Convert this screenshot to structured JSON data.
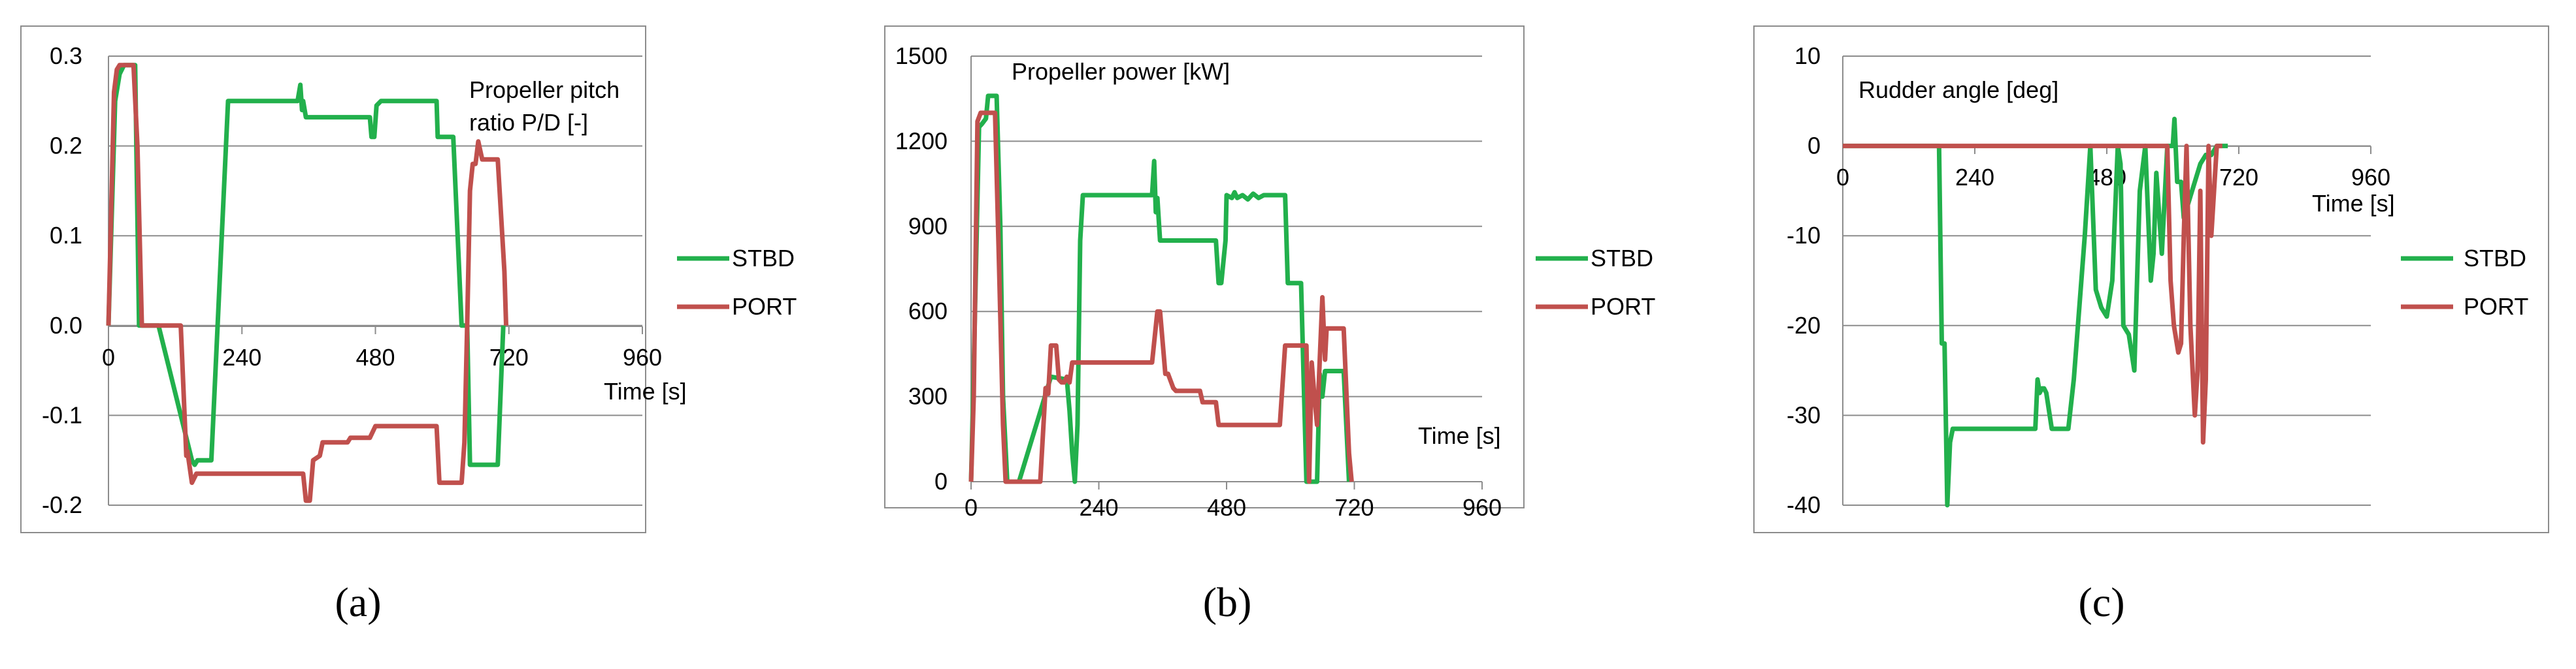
{
  "chart_data": [
    {
      "type": "line",
      "panel_label": "(a)",
      "title": "Propeller pitch ratio P/D [-]",
      "title_lines": [
        "Propeller pitch",
        "ratio P/D [-]"
      ],
      "xlabel": "Time [s]",
      "ylabel": "",
      "xlim": [
        0,
        960
      ],
      "ylim": [
        -0.2,
        0.3
      ],
      "xticks": [
        0,
        240,
        480,
        720,
        960
      ],
      "xtick_labels": [
        "0",
        "240",
        "480",
        "720",
        "960"
      ],
      "yticks": [
        0.3,
        0.2,
        0.1,
        0.0,
        -0.1,
        -0.2
      ],
      "ytick_labels": [
        "0.3",
        "0.2",
        "0.1",
        "0.0",
        "-0.1",
        "-0.2"
      ],
      "grid": "horizontal",
      "legend_position": "right",
      "series": [
        {
          "name": "STBD",
          "color": "#22b04c",
          "x": [
            0,
            12,
            20,
            28,
            30,
            48,
            55,
            90,
            150,
            155,
            160,
            185,
            215,
            218,
            340,
            345,
            348,
            350,
            355,
            360,
            470,
            473,
            478,
            482,
            490,
            590,
            592,
            620,
            635,
            645,
            650,
            700,
            710
          ],
          "y": [
            0.0,
            0.25,
            0.28,
            0.29,
            0.29,
            0.29,
            0.0,
            0.0,
            -0.15,
            -0.155,
            -0.15,
            -0.15,
            0.25,
            0.25,
            0.25,
            0.268,
            0.24,
            0.25,
            0.232,
            0.232,
            0.232,
            0.21,
            0.21,
            0.245,
            0.25,
            0.25,
            0.21,
            0.21,
            0.0,
            0.0,
            -0.155,
            -0.155,
            0.0
          ]
        },
        {
          "name": "PORT",
          "color": "#c0504d",
          "x": [
            0,
            10,
            15,
            20,
            45,
            52,
            60,
            90,
            130,
            140,
            142,
            150,
            158,
            162,
            320,
            350,
            355,
            362,
            368,
            380,
            385,
            430,
            435,
            470,
            480,
            590,
            595,
            635,
            640,
            645,
            650,
            655,
            660,
            665,
            672,
            700,
            712,
            715
          ],
          "y": [
            0.0,
            0.26,
            0.285,
            0.29,
            0.29,
            0.2,
            0.0,
            0.0,
            0.0,
            -0.145,
            -0.14,
            -0.175,
            -0.165,
            -0.165,
            -0.165,
            -0.165,
            -0.195,
            -0.195,
            -0.15,
            -0.145,
            -0.13,
            -0.13,
            -0.125,
            -0.125,
            -0.112,
            -0.112,
            -0.175,
            -0.175,
            -0.13,
            0.0,
            0.15,
            0.18,
            0.18,
            0.205,
            0.185,
            0.185,
            0.06,
            0.0
          ]
        }
      ]
    },
    {
      "type": "line",
      "panel_label": "(b)",
      "title": "Propeller power [kW]",
      "title_lines": [
        "Propeller power [kW]"
      ],
      "xlabel": "Time [s]",
      "ylabel": "",
      "xlim": [
        0,
        960
      ],
      "ylim": [
        0,
        1500
      ],
      "xticks": [
        0,
        240,
        480,
        720,
        960
      ],
      "xtick_labels": [
        "0",
        "240",
        "480",
        "720",
        "960"
      ],
      "yticks": [
        1500,
        1200,
        900,
        600,
        300,
        0
      ],
      "ytick_labels": [
        "1500",
        "1200",
        "900",
        "600",
        "300",
        "0"
      ],
      "grid": "horizontal",
      "legend_position": "right",
      "series": [
        {
          "name": "STBD",
          "color": "#22b04c",
          "x": [
            0,
            5,
            15,
            20,
            28,
            32,
            48,
            55,
            60,
            68,
            90,
            150,
            180,
            185,
            190,
            195,
            200,
            205,
            210,
            215,
            340,
            344,
            347,
            350,
            355,
            460,
            465,
            470,
            478,
            480,
            490,
            495,
            500,
            510,
            520,
            530,
            540,
            550,
            590,
            595,
            620,
            630,
            640,
            650,
            655,
            660,
            665,
            700,
            710
          ],
          "y": [
            0,
            400,
            1250,
            1260,
            1280,
            1360,
            1360,
            900,
            300,
            0,
            0,
            370,
            360,
            250,
            100,
            0,
            200,
            850,
            1010,
            1010,
            1010,
            1130,
            950,
            1000,
            850,
            850,
            700,
            700,
            850,
            1010,
            1000,
            1020,
            1000,
            1010,
            995,
            1015,
            1000,
            1010,
            1010,
            700,
            700,
            0,
            0,
            0,
            380,
            300,
            390,
            390,
            0
          ]
        },
        {
          "name": "PORT",
          "color": "#c0504d",
          "x": [
            0,
            5,
            12,
            18,
            45,
            52,
            60,
            65,
            130,
            140,
            145,
            150,
            155,
            160,
            165,
            170,
            175,
            180,
            185,
            190,
            200,
            210,
            340,
            350,
            355,
            365,
            370,
            380,
            385,
            430,
            435,
            460,
            465,
            480,
            490,
            580,
            590,
            595,
            630,
            635,
            640,
            645,
            650,
            655,
            660,
            665,
            668,
            675,
            700,
            710,
            715
          ],
          "y": [
            0,
            300,
            1270,
            1300,
            1300,
            800,
            200,
            0,
            0,
            330,
            310,
            480,
            480,
            480,
            360,
            350,
            350,
            370,
            350,
            420,
            420,
            420,
            420,
            600,
            600,
            380,
            380,
            330,
            320,
            320,
            280,
            280,
            200,
            200,
            200,
            200,
            480,
            480,
            480,
            0,
            420,
            300,
            200,
            430,
            650,
            430,
            540,
            540,
            540,
            100,
            0
          ]
        }
      ]
    },
    {
      "type": "line",
      "panel_label": "(c)",
      "title": "Rudder angle [deg]",
      "title_lines": [
        "Rudder angle [deg]"
      ],
      "xlabel": "Time [s]",
      "ylabel": "",
      "xlim": [
        0,
        960
      ],
      "ylim": [
        -40,
        10
      ],
      "xticks": [
        0,
        240,
        480,
        720,
        960
      ],
      "xtick_labels": [
        "0",
        "240",
        "480",
        "720",
        "960"
      ],
      "yticks": [
        10,
        0,
        -10,
        -20,
        -30,
        -40
      ],
      "ytick_labels": [
        "10",
        "0",
        "-10",
        "-20",
        "-30",
        "-40"
      ],
      "grid": "horizontal",
      "legend_position": "right",
      "series": [
        {
          "name": "STBD",
          "color": "#22b04c",
          "x": [
            0,
            175,
            180,
            185,
            190,
            195,
            200,
            205,
            210,
            220,
            350,
            354,
            358,
            362,
            366,
            370,
            380,
            400,
            410,
            420,
            440,
            450,
            460,
            470,
            480,
            490,
            500,
            505,
            510,
            520,
            530,
            540,
            550,
            560,
            565,
            570,
            580,
            590,
            600,
            603,
            608,
            615,
            620,
            630,
            640,
            650,
            660,
            665,
            670,
            680,
            690,
            700
          ],
          "y": [
            0,
            0,
            -22,
            -22,
            -40,
            -33,
            -31.5,
            -31.5,
            -31.5,
            -31.5,
            -31.5,
            -26,
            -27.5,
            -27,
            -27,
            -27.5,
            -31.5,
            -31.5,
            -31.5,
            -26,
            -10,
            0,
            -16,
            -18,
            -19,
            -15,
            0,
            -2,
            -20,
            -21,
            -25,
            -5,
            0,
            -15,
            -12,
            -3,
            -12,
            0,
            0,
            3,
            -4,
            -4,
            -8,
            -6,
            -4,
            -2,
            -1,
            -1,
            -1,
            0,
            0,
            0
          ]
        },
        {
          "name": "PORT",
          "color": "#c0504d",
          "x": [
            0,
            590,
            596,
            602,
            610,
            615,
            620,
            625,
            632,
            640,
            645,
            650,
            655,
            660,
            665,
            670,
            675,
            680,
            690
          ],
          "y": [
            0,
            0,
            -15,
            -20,
            -23,
            -22,
            -10,
            0,
            -20,
            -30,
            -25,
            -5,
            -33,
            -26,
            0,
            -10,
            -5,
            0,
            0
          ]
        }
      ]
    }
  ]
}
